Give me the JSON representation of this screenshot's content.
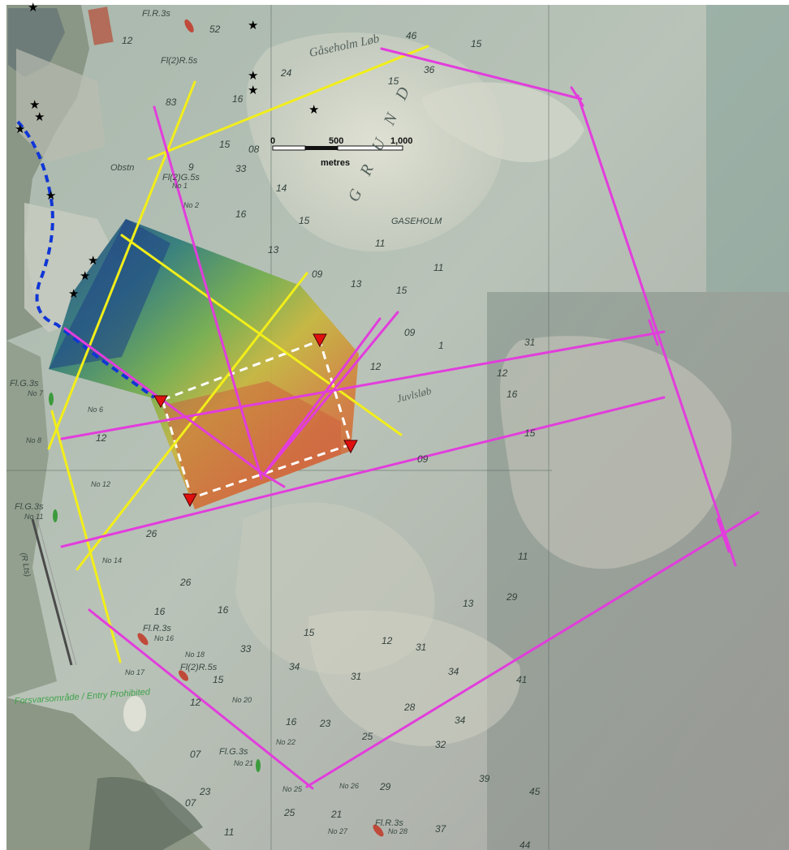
{
  "map": {
    "scale_bar": {
      "ticks": [
        "0",
        "500",
        "1,000"
      ],
      "unit": "metres"
    },
    "place_names": [
      {
        "id": "gaseholm-lob",
        "text": "Gåseholm Løb"
      },
      {
        "id": "grund",
        "text": "G R U N D"
      },
      {
        "id": "gaseholm",
        "text": "GASEHOLM"
      },
      {
        "id": "juvlsdyb",
        "text": "Juvlsløb"
      },
      {
        "id": "forsvarsomrade",
        "text": "Forsvarsområde / Entry Prohibited"
      }
    ],
    "lights": [
      {
        "id": "fl-r-3s-top",
        "text": "Fl.R.3s"
      },
      {
        "id": "fl2-r-5s-top",
        "text": "Fl(2)R.5s"
      },
      {
        "id": "fl2-g-5s",
        "text": "Fl(2)G.5s"
      },
      {
        "id": "fl-g-3s-a",
        "text": "Fl.G.3s"
      },
      {
        "id": "fl-g-3s-b",
        "text": "Fl.G.3s"
      },
      {
        "id": "fl-r-3s-mid",
        "text": "Fl.R.3s"
      },
      {
        "id": "fl2-r-5s-mid",
        "text": "Fl(2)R.5s"
      },
      {
        "id": "fl-g-3s-c",
        "text": "Fl.G.3s"
      },
      {
        "id": "fl-r-3s-bot",
        "text": "Fl.R.3s"
      }
    ],
    "buoys": [
      "No 1",
      "No 2",
      "No 6",
      "No 7",
      "No 8",
      "No 11",
      "No 12",
      "No 14",
      "No 16",
      "No 17",
      "No 18",
      "No 20",
      "No 21",
      "No 22",
      "No 25",
      "No 26",
      "No 27",
      "No 28"
    ],
    "other_labels": [
      "Obstn",
      "(R Lts)"
    ],
    "depths": [
      "46",
      "15",
      "36",
      "15",
      "12",
      "52",
      "24",
      "16",
      "83",
      "15",
      "08",
      "33",
      "9",
      "14",
      "16",
      "15",
      "13",
      "11",
      "09",
      "13",
      "15",
      "11",
      "1",
      "31",
      "12",
      "09",
      "16",
      "12",
      "09",
      "15",
      "26",
      "26",
      "16",
      "15",
      "12",
      "31",
      "11",
      "13",
      "29",
      "33",
      "34",
      "31",
      "34",
      "28",
      "16",
      "23",
      "25",
      "32",
      "34",
      "29",
      "39",
      "45",
      "41",
      "37",
      "44",
      "07",
      "23",
      "07",
      "25",
      "21",
      "11",
      "15",
      "12",
      "12",
      "16"
    ],
    "colors": {
      "survey_lines_magenta": "#e23ddc",
      "survey_lines_yellow": "#f2ee1a",
      "coastline_dashed": "#1036d6",
      "marker_red": "#e01010",
      "bathymetry_high": "#d4563a",
      "bathymetry_low": "#1e3f86"
    },
    "icons": {
      "marker": "red-down-triangle",
      "feature": "black-star"
    }
  }
}
